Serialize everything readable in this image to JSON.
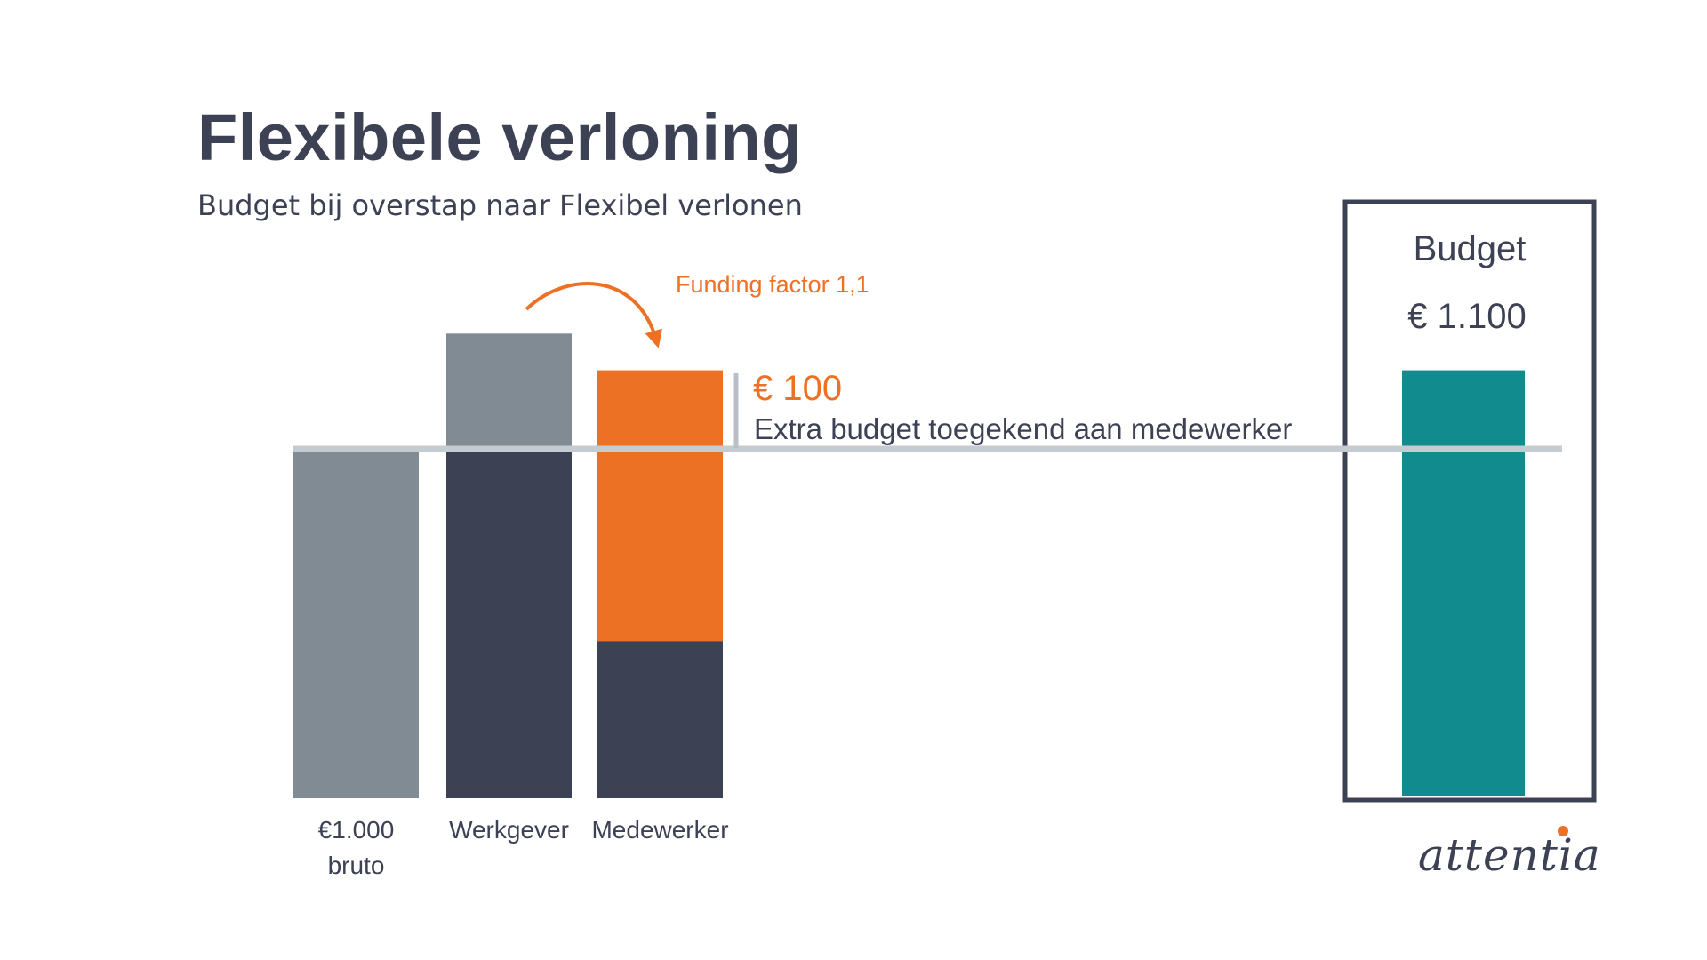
{
  "title": "Flexibele verloning",
  "subtitle": "Budget bij overstap naar Flexibel verlonen",
  "funding_label": "Funding factor 1,1",
  "extra_amount": "€ 100",
  "extra_label": "Extra budget toegekend aan medewerker",
  "budget_box": {
    "label": "Budget",
    "value": "€ 1.100"
  },
  "brand": {
    "name": "attentia"
  },
  "colors": {
    "gray": "#808b94",
    "dark": "#3d4154",
    "orange": "#ec7125",
    "teal": "#118b8d",
    "baseline": "#c4cbd1",
    "box_border": "#3d4154"
  },
  "chart_data": {
    "type": "bar",
    "title": "Flexibele verloning",
    "subtitle": "Budget bij overstap naar Flexibel verlonen",
    "categories": [
      {
        "line1": "€1.000",
        "line2": "bruto"
      },
      {
        "line1": "Werkgever",
        "line2": ""
      },
      {
        "line1": "Medewerker",
        "line2": ""
      }
    ],
    "bars": [
      {
        "name": "€1.000 bruto",
        "segments": [
          {
            "from": 0,
            "to": 1000,
            "color": "gray"
          }
        ]
      },
      {
        "name": "Werkgever",
        "segments": [
          {
            "from": 0,
            "to": 1000,
            "color": "dark"
          },
          {
            "from": 1000,
            "to": 1330,
            "color": "gray"
          }
        ]
      },
      {
        "name": "Medewerker",
        "segments": [
          {
            "from": 0,
            "to": 450,
            "color": "dark"
          },
          {
            "from": 450,
            "to": 1225,
            "color": "orange"
          }
        ]
      }
    ],
    "budget_bar": {
      "name": "Budget",
      "value": 1100,
      "display_top": 1225,
      "color": "teal"
    },
    "reference_line": 1000,
    "extra_budget": 100,
    "funding_factor": 1.1,
    "ylim": [
      0,
      1400
    ]
  }
}
